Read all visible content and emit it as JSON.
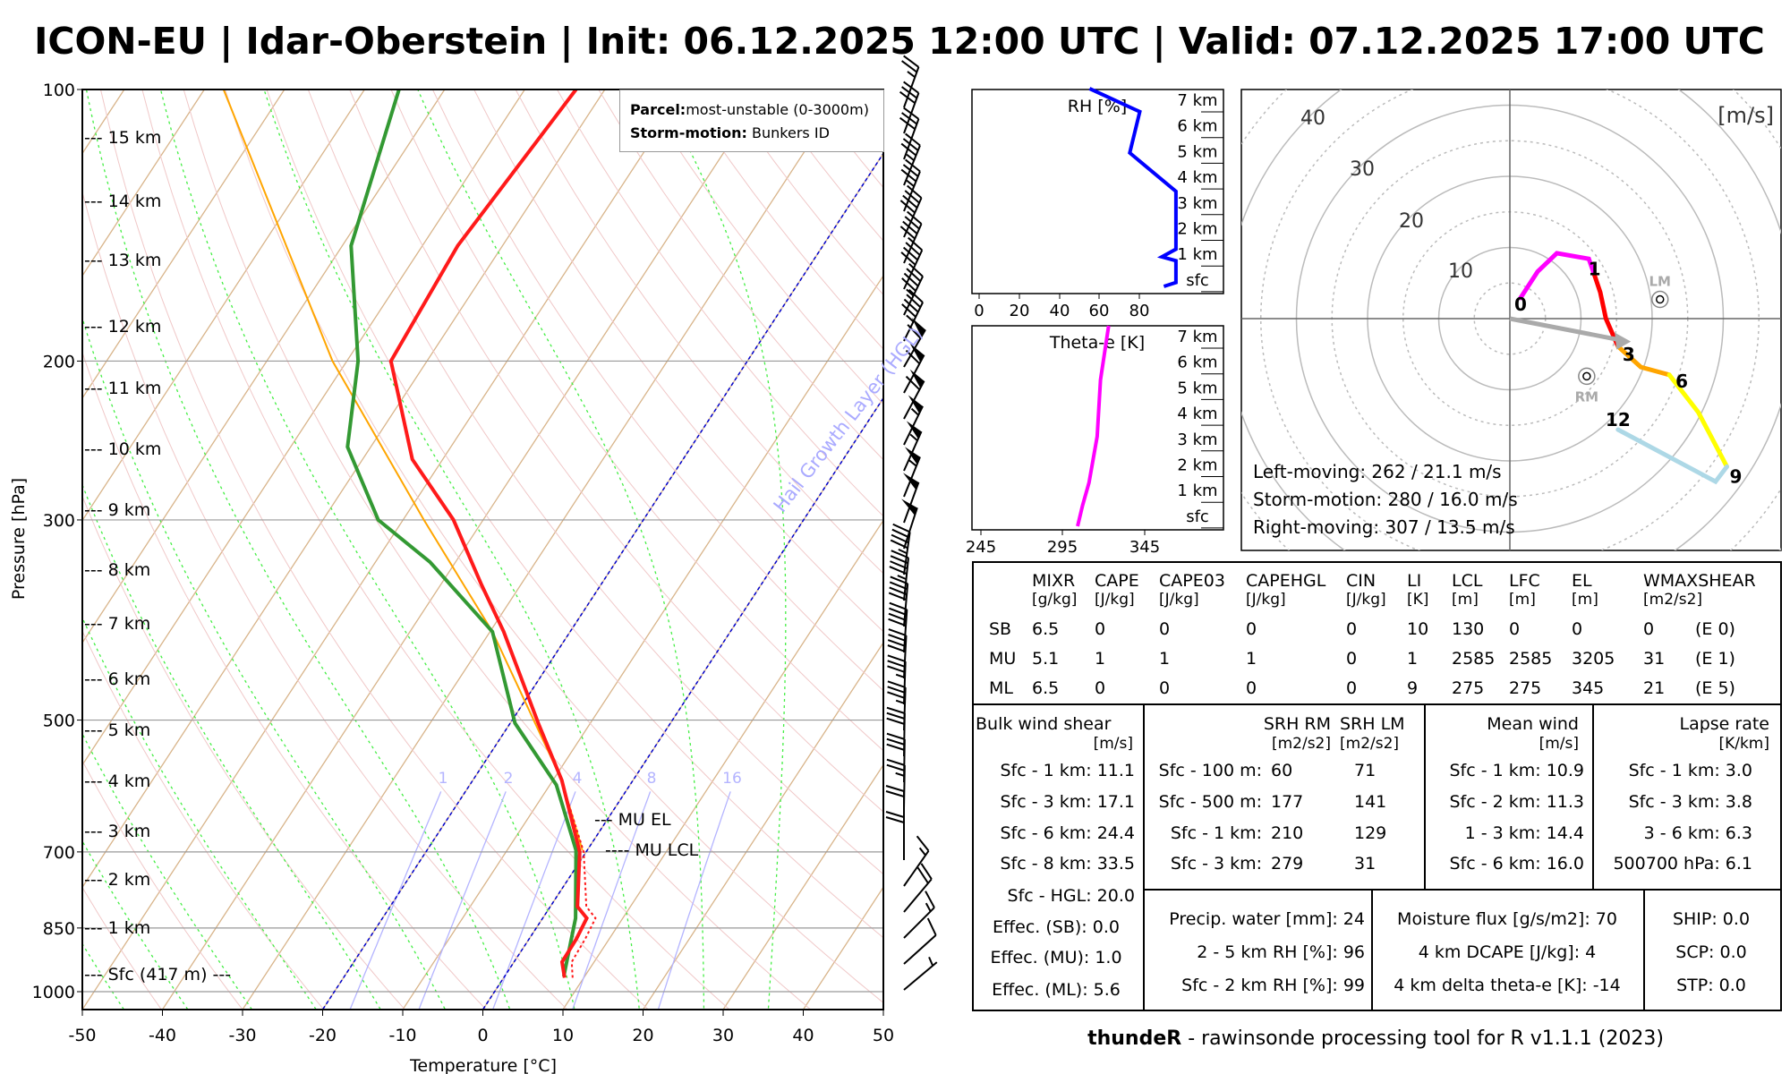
{
  "title": "ICON-EU | Idar-Oberstein | Init: 06.12.2025 12:00 UTC | Valid: 07.12.2025 17:00 UTC",
  "footer": {
    "bold": "thundeR",
    "rest": " - rawinsonde processing tool for R v1.1.1 (2023)"
  },
  "colors": {
    "temperature": "#ff1a1a",
    "dewpoint": "#339933",
    "parcel": "#ffa500",
    "hgl": "#0000cc",
    "rh": "#0000ff",
    "theta_e": "#ff00ff"
  },
  "skewt": {
    "ylabel": "Pressure [hPa]",
    "xlabel": "Temperature [°C]",
    "pressure_ticks": [
      "100",
      "200",
      "300",
      "500",
      "700",
      "850",
      "1000"
    ],
    "temp_ticks": [
      "-50",
      "-40",
      "-30",
      "-20",
      "-10",
      "0",
      "10",
      "20",
      "30",
      "40",
      "50"
    ],
    "height_labels": [
      "--- 15 km",
      "--- 14 km",
      "--- 13 km",
      "--- 12 km",
      "--- 11 km",
      "--- 10 km",
      "--- 9 km",
      "--- 8 km",
      "--- 7 km",
      "--- 6 km",
      "--- 5 km",
      "--- 4 km",
      "--- 3 km",
      "--- 2 km",
      "--- 1 km",
      "--- Sfc (417 m) ---"
    ],
    "legend": {
      "parcel_label": "Parcel:",
      "parcel_value": "most-unstable (0-3000m)",
      "storm_label": "Storm-motion:",
      "storm_value": "Bunkers ID"
    },
    "hgl_label": "Hail Growth Layer (HGL)",
    "mu_el": "--- MU EL",
    "mu_lcl": "---- MU LCL",
    "mixing_ratio_labels": [
      "1",
      "2",
      "4",
      "8",
      "16"
    ]
  },
  "rh_panel": {
    "title": "RH [%]",
    "x_ticks": [
      "0",
      "20",
      "40",
      "60",
      "80"
    ],
    "height_labels": [
      "7 km",
      "6 km",
      "5 km",
      "4 km",
      "3 km",
      "2 km",
      "1 km",
      "sfc"
    ]
  },
  "theta_panel": {
    "title": "Theta-e [K]",
    "x_ticks": [
      "245",
      "295",
      "345"
    ],
    "height_labels": [
      "7 km",
      "6 km",
      "5 km",
      "4 km",
      "3 km",
      "2 km",
      "1 km",
      "sfc"
    ]
  },
  "hodograph": {
    "units": "[m/s]",
    "ring_labels": [
      "10",
      "20",
      "30",
      "40"
    ],
    "lm_label": "LM",
    "rm_label": "RM",
    "height_marks": [
      "0",
      "1",
      "3",
      "6",
      "9",
      "12"
    ],
    "lines": [
      "Left-moving: 262 / 21.1 m/s",
      "Storm-motion: 280 / 16.0 m/s",
      "Right-moving: 307 / 13.5 m/s"
    ]
  },
  "params": {
    "headers": [
      [
        "MIXR",
        "[g/kg]"
      ],
      [
        "CAPE",
        "[J/kg]"
      ],
      [
        "CAPE03",
        "[J/kg]"
      ],
      [
        "CAPEHGL",
        "[J/kg]"
      ],
      [
        "CIN",
        "[J/kg]"
      ],
      [
        "LI",
        "[K]"
      ],
      [
        "LCL",
        "[m]"
      ],
      [
        "LFC",
        "[m]"
      ],
      [
        "EL",
        "[m]"
      ],
      [
        "WMAXSHEAR",
        "[m2/s2]"
      ]
    ],
    "rows": [
      {
        "label": "SB",
        "values": [
          "6.5",
          "0",
          "0",
          "0",
          "0",
          "10",
          "130",
          "0",
          "0",
          "0",
          "(E 0)"
        ]
      },
      {
        "label": "MU",
        "values": [
          "5.1",
          "1",
          "1",
          "1",
          "0",
          "1",
          "2585",
          "2585",
          "3205",
          "31",
          "(E 1)"
        ]
      },
      {
        "label": "ML",
        "values": [
          "6.5",
          "0",
          "0",
          "0",
          "0",
          "9",
          "275",
          "275",
          "345",
          "21",
          "(E 5)"
        ]
      }
    ]
  },
  "bulk_shear": {
    "title": "Bulk wind shear",
    "units": "[m/s]",
    "rows": [
      "Sfc - 1 km: 11.1",
      "Sfc - 3 km: 17.1",
      "Sfc - 6 km: 24.4",
      "Sfc - 8 km: 33.5",
      "Sfc - HGL: 20.0",
      "Effec. (SB): 0.0",
      "Effec. (MU): 1.0",
      "Effec. (ML): 5.6"
    ]
  },
  "srh": {
    "rm_title": "SRH RM",
    "lm_title": "SRH LM",
    "rm_units": "[m2/s2]",
    "lm_units": "[m2/s2]",
    "rows": [
      {
        "label": "Sfc - 100 m:",
        "rm": "60",
        "lm": "71"
      },
      {
        "label": "Sfc - 500 m:",
        "rm": "177",
        "lm": "141"
      },
      {
        "label": "Sfc - 1 km:",
        "rm": "210",
        "lm": "129"
      },
      {
        "label": "Sfc - 3 km:",
        "rm": "279",
        "lm": "31"
      }
    ]
  },
  "mean_wind": {
    "title": "Mean wind",
    "units": "[m/s]",
    "rows": [
      "Sfc - 1 km: 10.9",
      "Sfc - 2 km: 11.3",
      "1 - 3 km: 14.4",
      "Sfc - 6 km: 16.0"
    ]
  },
  "lapse_rate": {
    "title": "Lapse rate",
    "units": "[K/km]",
    "rows": [
      "Sfc - 1 km: 3.0",
      "Sfc - 3 km: 3.8",
      "3 - 6 km: 6.3",
      "500700 hPa: 6.1"
    ]
  },
  "moisture": {
    "rows": [
      "Precip. water [mm]: 24",
      "2 - 5 km RH [%]: 96",
      "Sfc - 2 km RH [%]: 99"
    ]
  },
  "flux": {
    "rows": [
      "Moisture flux [g/s/m2]: 70",
      "4 km DCAPE [J/kg]: 4",
      "4 km delta theta-e [K]: -14"
    ]
  },
  "composites": {
    "rows": [
      "SHIP: 0.0",
      "SCP: 0.0",
      "STP: 0.0"
    ]
  },
  "chart_data": [
    {
      "type": "line",
      "name": "skew-T log-P diagram",
      "xlabel": "Temperature [°C]",
      "ylabel": "Pressure [hPa]",
      "xlim": [
        -50,
        50
      ],
      "ylim": [
        1050,
        100
      ],
      "temperature": [
        [
          965,
          7.6
        ],
        [
          927,
          6.0
        ],
        [
          874,
          5.9
        ],
        [
          829,
          5.5
        ],
        [
          805,
          3.4
        ],
        [
          700,
          -0.8
        ],
        [
          583,
          -8.9
        ],
        [
          504,
          -16.5
        ],
        [
          399,
          -28.3
        ],
        [
          354,
          -34.9
        ],
        [
          300,
          -43.7
        ],
        [
          257,
          -53.8
        ],
        [
          200,
          -64.5
        ],
        [
          149,
          -65.6
        ],
        [
          100,
          -63.6
        ]
      ],
      "virtual_temperature": [
        [
          965,
          8.6
        ],
        [
          927,
          7.2
        ],
        [
          874,
          7.0
        ],
        [
          829,
          6.6
        ],
        [
          805,
          4.5
        ],
        [
          700,
          -0.3
        ],
        [
          600,
          -7.6
        ]
      ],
      "dewpoint": [
        [
          962,
          7.4
        ],
        [
          829,
          4.1
        ],
        [
          697,
          -1.4
        ],
        [
          590,
          -9.2
        ],
        [
          504,
          -19.4
        ],
        [
          399,
          -29.7
        ],
        [
          334,
          -43.2
        ],
        [
          300,
          -53.1
        ],
        [
          249,
          -62.9
        ],
        [
          200,
          -68.6
        ],
        [
          149,
          -78.9
        ],
        [
          100,
          -85.7
        ]
      ],
      "parcel": [
        [
          697,
          -0.6
        ],
        [
          583,
          -8.9
        ],
        [
          399,
          -29.7
        ],
        [
          300,
          -47.4
        ],
        [
          200,
          -71.8
        ],
        [
          100,
          -107.6
        ]
      ],
      "hgl_isotherms": [
        0,
        -20
      ],
      "mixing_ratios_gkg": [
        1,
        2,
        4,
        8,
        16
      ],
      "wind_barbs_kt": [
        25,
        30,
        30,
        35,
        35,
        40,
        40,
        40,
        45,
        45,
        60,
        60,
        60,
        55,
        55,
        55,
        50,
        50,
        45,
        45,
        40,
        40,
        40,
        35,
        35,
        30,
        30,
        25,
        20,
        20,
        15,
        20,
        15,
        10,
        5
      ],
      "wind_dir_deg": [
        290,
        290,
        290,
        292,
        292,
        294,
        294,
        295,
        296,
        296,
        300,
        298,
        298,
        296,
        294,
        292,
        290,
        288,
        278,
        276,
        275,
        274,
        273,
        272,
        272,
        271,
        271,
        271,
        270,
        270,
        305,
        310,
        315,
        318,
        320
      ]
    },
    {
      "type": "line",
      "name": "RH profile",
      "xlabel": "RH [%]",
      "xlim": [
        0,
        100
      ],
      "ylim_km": [
        0,
        7.8
      ],
      "points_km_rh": [
        [
          0,
          92
        ],
        [
          0.15,
          98
        ],
        [
          1.0,
          98
        ],
        [
          1.15,
          91
        ],
        [
          1.45,
          98
        ],
        [
          3.7,
          98
        ],
        [
          5.2,
          75
        ],
        [
          6.8,
          80
        ],
        [
          7.7,
          55
        ]
      ]
    },
    {
      "type": "line",
      "name": "Theta-e profile",
      "xlabel": "Theta-e [K]",
      "xlim": [
        245,
        385
      ],
      "ylim_km": [
        0,
        7.8
      ],
      "points_km_k": [
        [
          0,
          304
        ],
        [
          0.8,
          307
        ],
        [
          1.7,
          311
        ],
        [
          3.5,
          316
        ],
        [
          5.7,
          318
        ],
        [
          7.8,
          323
        ]
      ]
    },
    {
      "type": "line",
      "name": "hodograph",
      "units": "m/s",
      "rings": [
        10,
        20,
        30,
        40
      ],
      "heights_km": [
        0,
        0.3,
        0.6,
        0.8,
        1,
        1.5,
        2,
        3,
        4.5,
        6,
        7.5,
        9,
        10.5,
        12
      ],
      "u": [
        1.5,
        3.9,
        6.6,
        11.1,
        11.9,
        12.7,
        13.5,
        15.2,
        18.4,
        22.4,
        26.5,
        30.5,
        28.9,
        15.2
      ],
      "v": [
        2.9,
        6.6,
        9.2,
        8.4,
        6.1,
        3.7,
        0,
        -3.9,
        -6.8,
        -7.9,
        -13.2,
        -20.8,
        -22.9,
        -15.6
      ],
      "storm_motion_uv": [
        16.0,
        -3.1
      ],
      "left_mover_uv": [
        21.1,
        2.7
      ],
      "right_mover_uv": [
        10.8,
        -8.1
      ]
    }
  ]
}
